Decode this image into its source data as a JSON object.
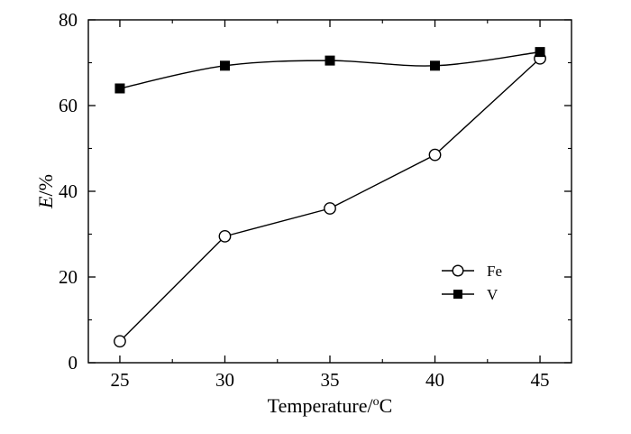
{
  "chart_data": {
    "type": "line",
    "title": "",
    "xlabel": "Temperature/",
    "xlabel_sup": "o",
    "xlabel_unit": "C",
    "ylabel_italic": "E",
    "ylabel_rest": "/%",
    "xlim": [
      23.5,
      46.5
    ],
    "ylim": [
      0,
      80
    ],
    "xticks": [
      25,
      30,
      35,
      40,
      45
    ],
    "yticks": [
      0,
      20,
      40,
      60,
      80
    ],
    "grid": false,
    "legend_position": "lower-right",
    "series": [
      {
        "name": "Fe",
        "marker": "open-circle",
        "smooth": false,
        "x": [
          25,
          30,
          35,
          40,
          45
        ],
        "y": [
          5,
          29.5,
          36,
          48.5,
          71
        ]
      },
      {
        "name": "V",
        "marker": "filled-square",
        "smooth": true,
        "x": [
          25,
          30,
          35,
          40,
          45
        ],
        "y": [
          64,
          69.3,
          70.5,
          69.3,
          72.5
        ]
      }
    ]
  }
}
